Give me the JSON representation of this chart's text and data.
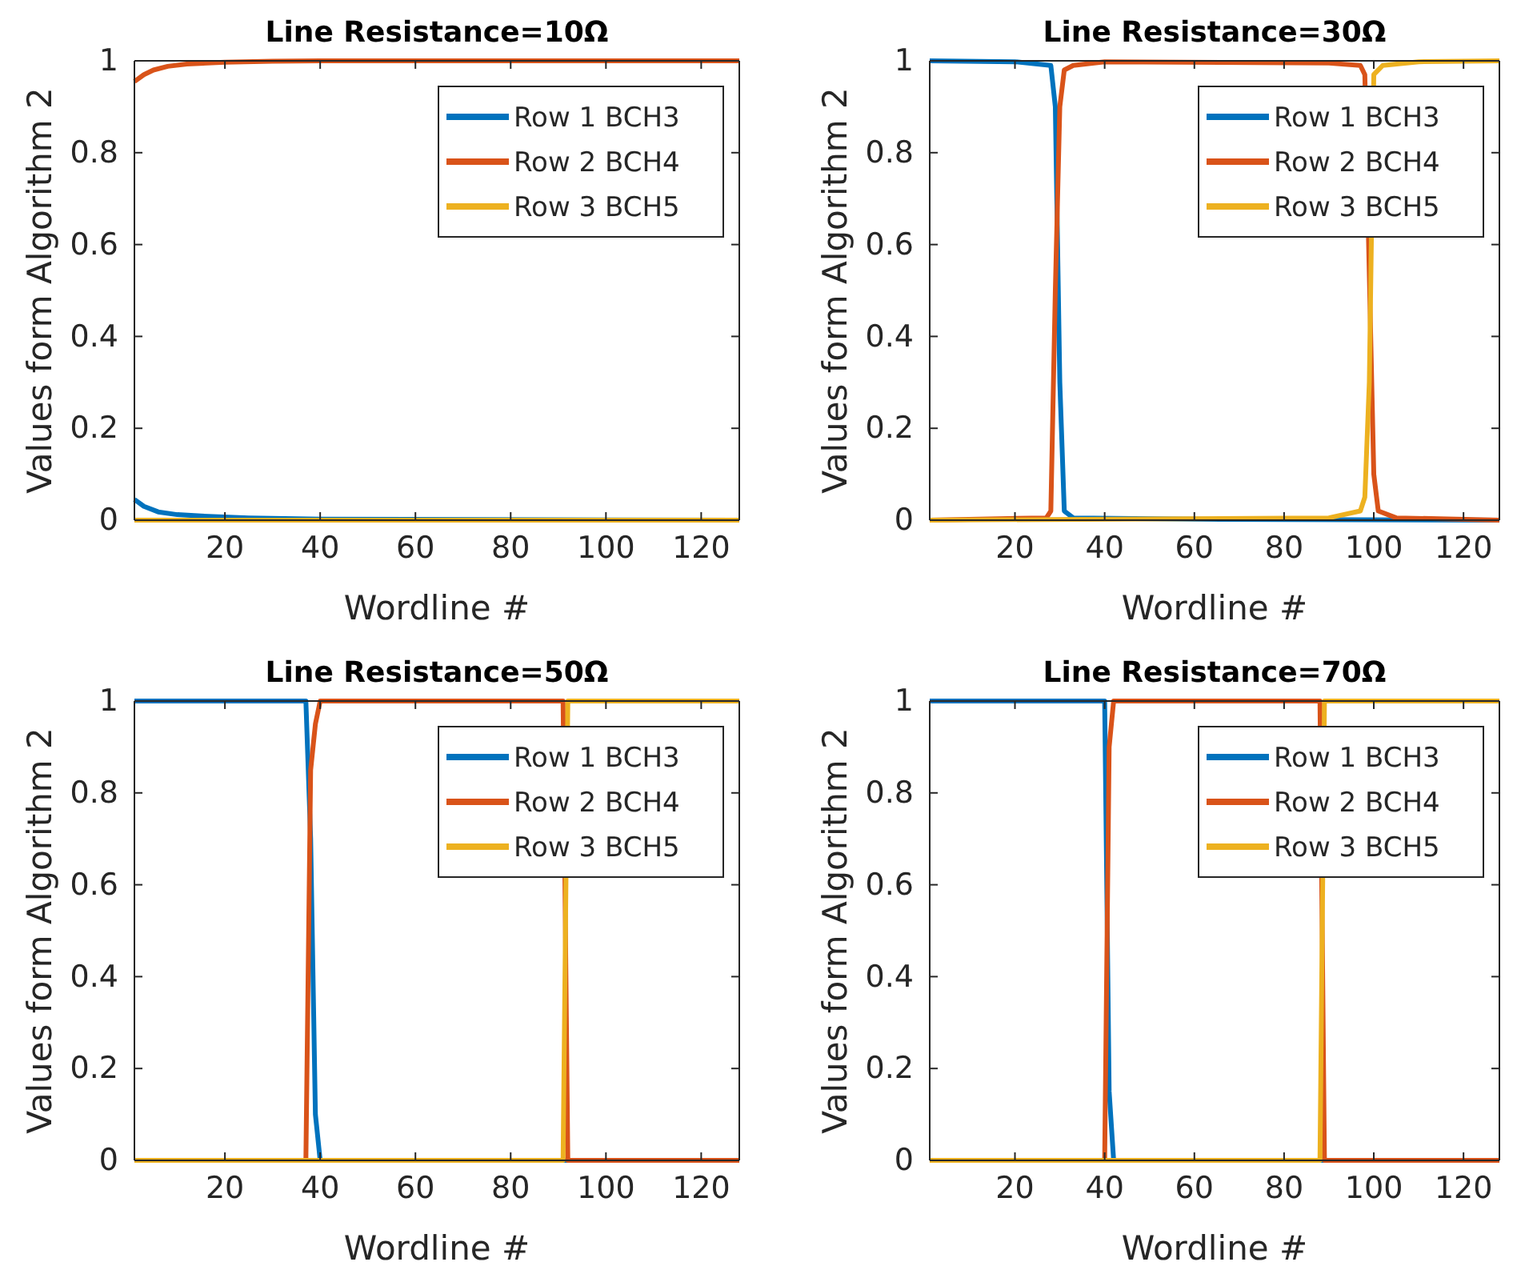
{
  "chart_data": [
    {
      "type": "line",
      "title": "Line Resistance=10Ω",
      "xlabel": "Wordline #",
      "ylabel": "Values form Algorithm 2",
      "xlim": [
        1,
        128
      ],
      "xticks": [
        20,
        40,
        60,
        80,
        100,
        120
      ],
      "ylim": [
        0,
        1
      ],
      "yticks": [
        0,
        0.2,
        0.4,
        0.6,
        0.8,
        1
      ],
      "legend": "top right",
      "grid": false,
      "series": [
        {
          "name": "Row 1 BCH3",
          "color": "#0072bd",
          "x": [
            1,
            3,
            6,
            10,
            15,
            25,
            40,
            128
          ],
          "values": [
            0.045,
            0.03,
            0.018,
            0.012,
            0.009,
            0.005,
            0.002,
            0
          ]
        },
        {
          "name": "Row 2 BCH4",
          "color": "#d95319",
          "x": [
            1,
            3,
            5,
            8,
            12,
            20,
            30,
            40,
            128
          ],
          "values": [
            0.955,
            0.97,
            0.98,
            0.988,
            0.993,
            0.997,
            0.999,
            1,
            1
          ]
        },
        {
          "name": "Row 3 BCH5",
          "color": "#edb120",
          "x": [
            1,
            128
          ],
          "values": [
            0,
            0
          ]
        }
      ]
    },
    {
      "type": "line",
      "title": "Line Resistance=30Ω",
      "xlabel": "Wordline #",
      "ylabel": "Values form Algorithm 2",
      "xlim": [
        1,
        128
      ],
      "xticks": [
        20,
        40,
        60,
        80,
        100,
        120
      ],
      "ylim": [
        0,
        1
      ],
      "yticks": [
        0,
        0.2,
        0.4,
        0.6,
        0.8,
        1
      ],
      "legend": "top right",
      "grid": false,
      "series": [
        {
          "name": "Row 1 BCH3",
          "color": "#0072bd",
          "x": [
            1,
            20,
            28,
            29,
            30,
            31,
            33,
            60,
            128
          ],
          "values": [
            1,
            0.998,
            0.99,
            0.9,
            0.3,
            0.02,
            0.005,
            0.002,
            0
          ]
        },
        {
          "name": "Row 2 BCH4",
          "color": "#d95319",
          "x": [
            1,
            27,
            28,
            29,
            30,
            31,
            33,
            40,
            90,
            97,
            98,
            99,
            100,
            101,
            105,
            128
          ],
          "values": [
            0,
            0.005,
            0.02,
            0.5,
            0.9,
            0.98,
            0.99,
            0.998,
            0.995,
            0.99,
            0.97,
            null,
            0.1,
            0.02,
            0.005,
            0
          ]
        },
        {
          "name": "Row 3 BCH5",
          "color": "#edb120",
          "x": [
            1,
            90,
            97,
            98,
            99,
            100,
            102,
            110,
            128
          ],
          "values": [
            0,
            0.005,
            0.02,
            0.05,
            0.3,
            0.97,
            0.99,
            0.998,
            1
          ]
        }
      ]
    },
    {
      "type": "line",
      "title": "Line Resistance=50Ω",
      "xlabel": "Wordline #",
      "ylabel": "Values form Algorithm 2",
      "xlim": [
        1,
        128
      ],
      "xticks": [
        20,
        40,
        60,
        80,
        100,
        120
      ],
      "ylim": [
        0,
        1
      ],
      "yticks": [
        0,
        0.2,
        0.4,
        0.6,
        0.8,
        1
      ],
      "legend": "top right",
      "grid": false,
      "series": [
        {
          "name": "Row 1 BCH3",
          "color": "#0072bd",
          "x": [
            1,
            37,
            38,
            39,
            40,
            128
          ],
          "values": [
            1,
            1,
            0.7,
            0.1,
            0,
            0
          ]
        },
        {
          "name": "Row 2 BCH4",
          "color": "#d95319",
          "x": [
            1,
            37,
            38,
            39,
            40,
            91,
            92,
            128
          ],
          "values": [
            0,
            0,
            0.85,
            0.95,
            1,
            1,
            0,
            0
          ]
        },
        {
          "name": "Row 3 BCH5",
          "color": "#edb120",
          "x": [
            1,
            91,
            92,
            128
          ],
          "values": [
            0,
            0,
            1,
            1
          ]
        }
      ]
    },
    {
      "type": "line",
      "title": "Line Resistance=70Ω",
      "xlabel": "Wordline #",
      "ylabel": "Values form Algorithm 2",
      "xlim": [
        1,
        128
      ],
      "xticks": [
        20,
        40,
        60,
        80,
        100,
        120
      ],
      "ylim": [
        0,
        1
      ],
      "yticks": [
        0,
        0.2,
        0.4,
        0.6,
        0.8,
        1
      ],
      "legend": "top right",
      "grid": false,
      "series": [
        {
          "name": "Row 1 BCH3",
          "color": "#0072bd",
          "x": [
            1,
            40,
            41,
            42,
            128
          ],
          "values": [
            1,
            1,
            0.15,
            0,
            0
          ]
        },
        {
          "name": "Row 2 BCH4",
          "color": "#d95319",
          "x": [
            1,
            40,
            41,
            42,
            88,
            89,
            128
          ],
          "values": [
            0,
            0,
            0.9,
            1,
            1,
            0,
            0
          ]
        },
        {
          "name": "Row 3 BCH5",
          "color": "#edb120",
          "x": [
            1,
            88,
            89,
            128
          ],
          "values": [
            0,
            0,
            1,
            1
          ]
        }
      ]
    }
  ]
}
